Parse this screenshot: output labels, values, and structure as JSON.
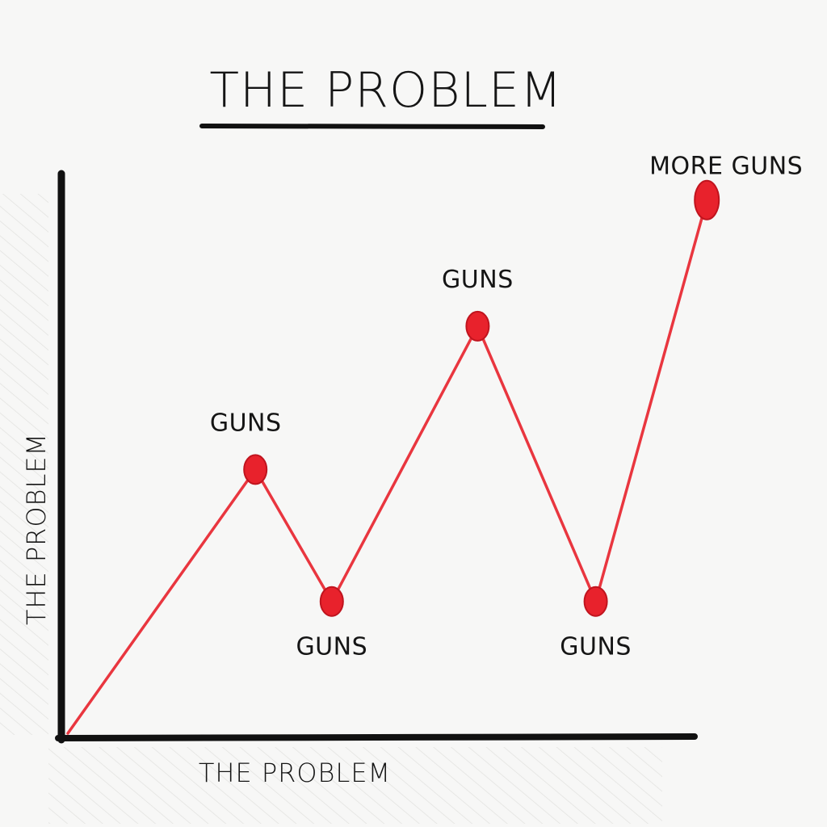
{
  "chart_data": {
    "type": "line",
    "title": "THE PROBLEM",
    "xlabel": "THE PROBLEM",
    "ylabel": "THE PROBLEM",
    "grid": false,
    "line_color": "#e8222c",
    "axis_color": "#111111",
    "x": [
      0,
      2.7,
      3.8,
      5.9,
      7.6,
      9.2
    ],
    "y": [
      0,
      4.6,
      2.3,
      7.1,
      2.3,
      9.3
    ],
    "xlim": [
      0,
      10
    ],
    "ylim": [
      0,
      10
    ],
    "point_labels": [
      "",
      "GUNS",
      "GUNS",
      "GUNS",
      "GUNS",
      "MORE GUNS"
    ],
    "label_positions": [
      "none",
      "above",
      "below",
      "above",
      "below",
      "above"
    ]
  }
}
